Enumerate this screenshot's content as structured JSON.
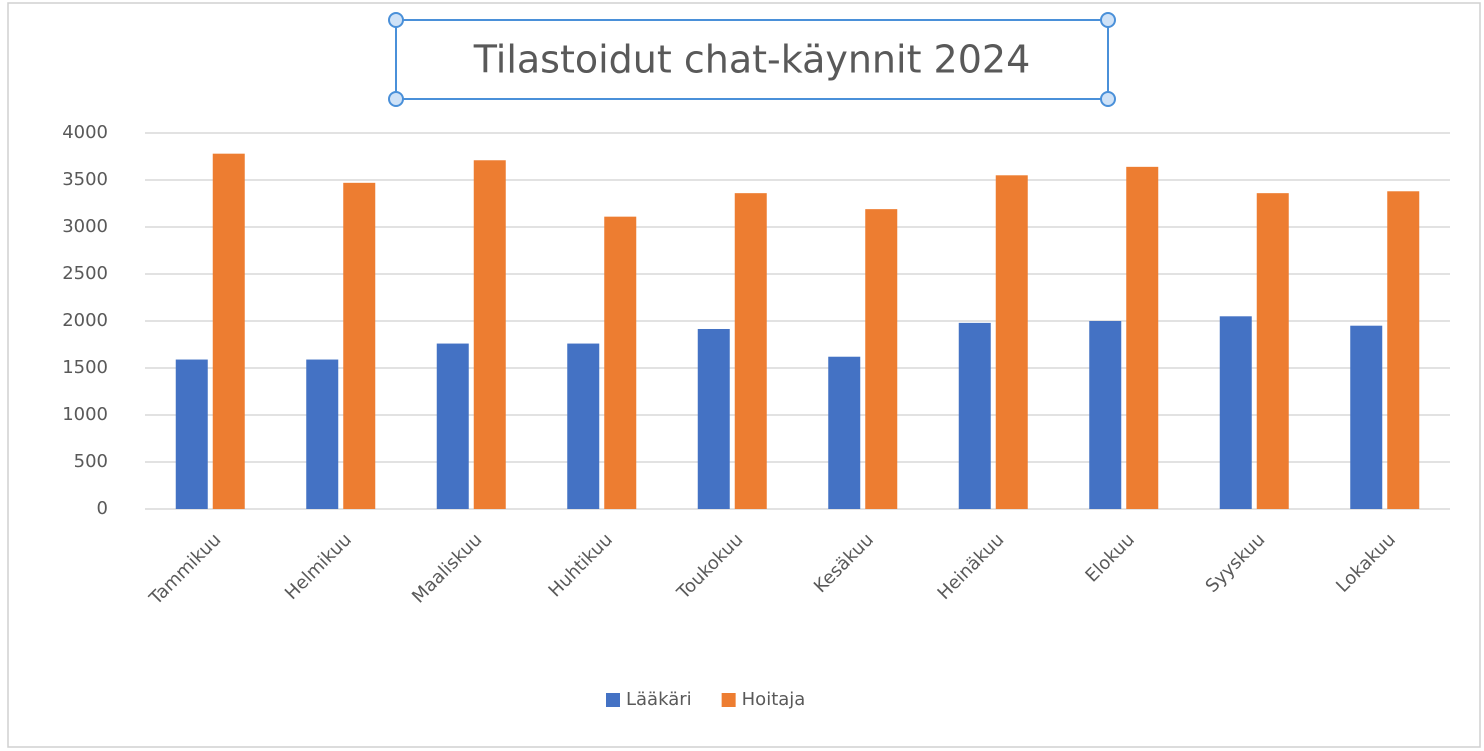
{
  "chart_data": {
    "type": "bar",
    "title": "Tilastoidut chat-käynnit 2024",
    "categories": [
      "Tammikuu",
      "Helmikuu",
      "Maaliskuu",
      "Huhtikuu",
      "Toukokuu",
      "Kesäkuu",
      "Heinäkuu",
      "Elokuu",
      "Syyskuu",
      "Lokakuu"
    ],
    "series": [
      {
        "name": "Lääkäri",
        "color": "#4472c4",
        "values": [
          1590,
          1590,
          1760,
          1760,
          1915,
          1620,
          1980,
          2000,
          2050,
          1950
        ]
      },
      {
        "name": "Hoitaja",
        "color": "#ed7d31",
        "values": [
          3780,
          3470,
          3710,
          3110,
          3360,
          3190,
          3550,
          3640,
          3360,
          3380
        ]
      }
    ],
    "ylim": [
      0,
      4000
    ],
    "yticks": [
      0,
      500,
      1000,
      1500,
      2000,
      2500,
      3000,
      3500,
      4000
    ],
    "grid": true,
    "legend": "bottom"
  }
}
